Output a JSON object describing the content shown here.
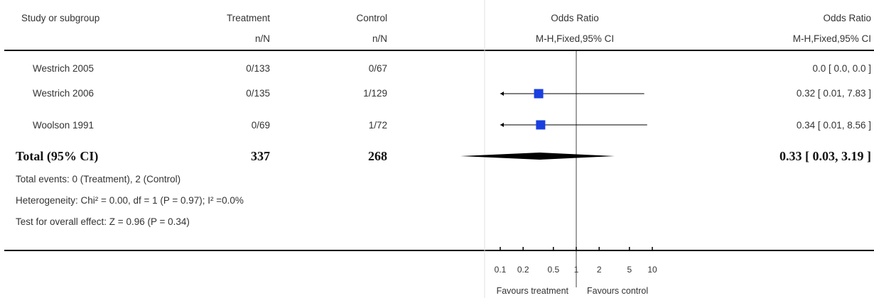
{
  "header": {
    "study_col": "Study or subgroup",
    "treatment_col": "Treatment",
    "treatment_sub": "n/N",
    "control_col": "Control",
    "control_sub": "n/N",
    "plot_col": "Odds Ratio",
    "plot_sub": "M-H,Fixed,95% CI",
    "result_col": "Odds Ratio",
    "result_sub": "M-H,Fixed,95% CI"
  },
  "chart_data": {
    "type": "forest",
    "x_scale": "log",
    "xlim": [
      0.1,
      10
    ],
    "ticks": [
      0.1,
      0.2,
      0.5,
      1,
      2,
      5,
      10
    ],
    "tick_labels": [
      "0.1",
      "0.2",
      "0.5",
      "1",
      "2",
      "5",
      "10"
    ],
    "reference_line": 1,
    "favours_left": "Favours treatment",
    "favours_right": "Favours control",
    "studies": [
      {
        "name": "Westrich 2005",
        "treatment": "0/133",
        "control": "0/67",
        "or": null,
        "lo": null,
        "hi": null,
        "ci_text": "0.0 [ 0.0, 0.0 ]"
      },
      {
        "name": "Westrich 2006",
        "treatment": "0/135",
        "control": "1/129",
        "or": 0.32,
        "lo": 0.01,
        "hi": 7.83,
        "ci_text": "0.32 [ 0.01, 7.83 ]"
      },
      {
        "name": "Woolson 1991",
        "treatment": "0/69",
        "control": "1/72",
        "or": 0.34,
        "lo": 0.01,
        "hi": 8.56,
        "ci_text": "0.34 [ 0.01, 8.56 ]"
      }
    ],
    "total": {
      "label": "Total (95% CI)",
      "treatment": "337",
      "control": "268",
      "or": 0.33,
      "lo": 0.03,
      "hi": 3.19,
      "ci_text": "0.33 [ 0.03, 3.19 ]"
    },
    "footnotes": {
      "events": "Total events: 0 (Treatment), 2 (Control)",
      "heterogeneity": "Heterogeneity: Chi² = 0.00, df = 1 (P = 0.97); I² =0.0%",
      "overall": "Test for overall effect: Z = 0.96 (P = 0.34)"
    },
    "colors": {
      "marker": "#1a3fe0",
      "diamond": "#000000"
    }
  }
}
